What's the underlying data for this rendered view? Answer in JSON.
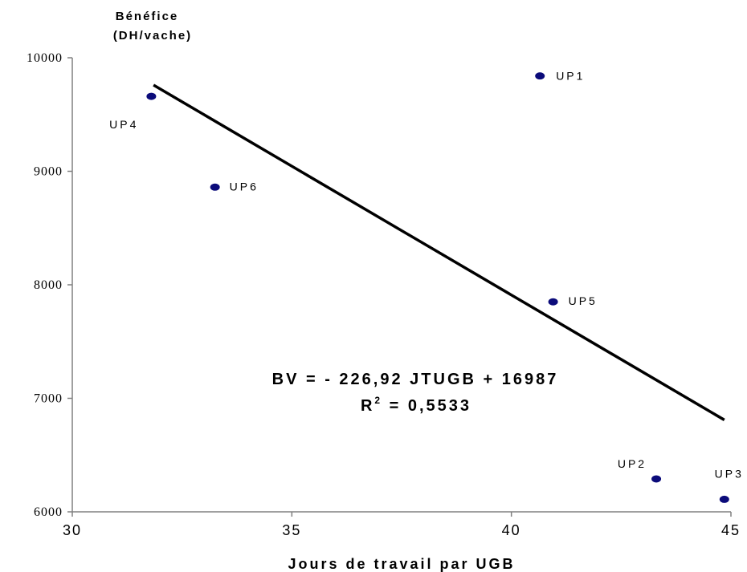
{
  "chart_data": {
    "type": "scatter",
    "title": "",
    "xlabel": "Jours de travail par UGB",
    "ylabel_line1": "Bénéfice",
    "ylabel_line2": "(DH/vache)",
    "xlim": [
      30,
      45
    ],
    "ylim": [
      6000,
      10000
    ],
    "x_ticks": [
      30,
      35,
      40,
      45
    ],
    "y_ticks": [
      6000,
      7000,
      8000,
      9000,
      10000
    ],
    "grid": false,
    "points": [
      {
        "label": "UP1",
        "x": 40.65,
        "y": 9840
      },
      {
        "label": "UP2",
        "x": 43.3,
        "y": 6290
      },
      {
        "label": "UP3",
        "x": 44.85,
        "y": 6110
      },
      {
        "label": "UP4",
        "x": 31.8,
        "y": 9660
      },
      {
        "label": "UP5",
        "x": 40.95,
        "y": 7850
      },
      {
        "label": "UP6",
        "x": 33.25,
        "y": 8860
      }
    ],
    "trendline": {
      "slope": -226.92,
      "intercept": 16987,
      "x_range": [
        31.85,
        44.85
      ],
      "equation": "BV = - 226,92 JTUGB + 16987",
      "r2_label": "R",
      "r2_sup": "2",
      "r2_value": " = 0,5533"
    },
    "colors": {
      "points": "#0b0b7a",
      "line": "#000000",
      "axis": "#808080"
    }
  }
}
